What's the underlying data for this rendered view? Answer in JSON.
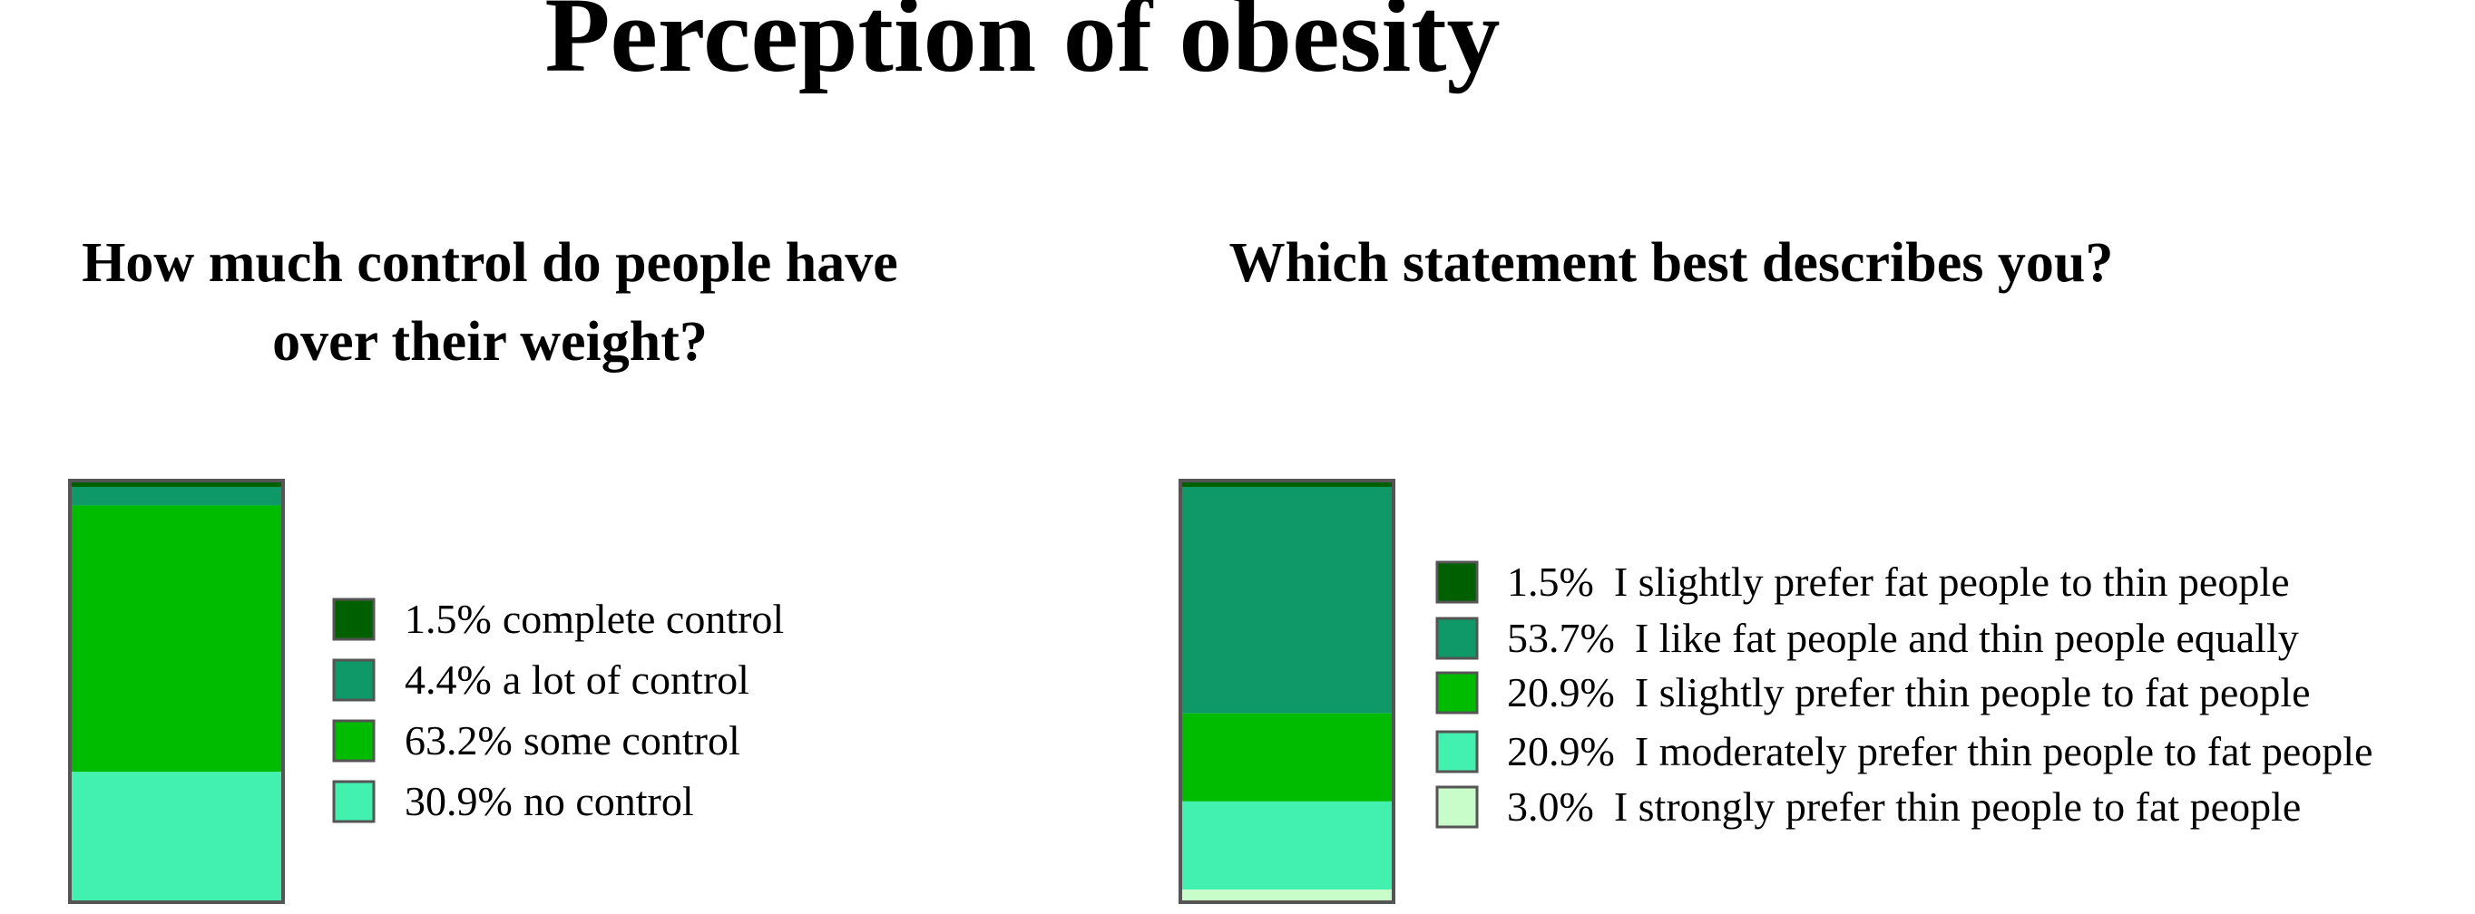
{
  "title": "Perception of obesity",
  "chart_data": [
    {
      "type": "bar",
      "stacked": true,
      "title_lines": [
        "How much control do people have",
        "over their weight?"
      ],
      "unit": "%",
      "ylim": [
        0,
        100
      ],
      "segments": [
        {
          "label": "complete control",
          "value": 1.5,
          "value_label": "1.5%",
          "color": "#006000"
        },
        {
          "label": "a lot of control",
          "value": 4.4,
          "value_label": "4.4%",
          "color": "#0f9868"
        },
        {
          "label": "some control",
          "value": 63.2,
          "value_label": "63.2%",
          "color": "#00bc00"
        },
        {
          "label": "no control",
          "value": 30.9,
          "value_label": "30.9%",
          "color": "#42f0b0"
        }
      ],
      "legend_position": "right"
    },
    {
      "type": "bar",
      "stacked": true,
      "title_lines": [
        "Which statement best describes you?"
      ],
      "unit": "%",
      "ylim": [
        0,
        100
      ],
      "segments": [
        {
          "label": "I slightly prefer fat people to thin people",
          "value": 1.5,
          "value_label": "1.5%",
          "color": "#006000"
        },
        {
          "label": "I like fat people and thin people equally",
          "value": 53.7,
          "value_label": "53.7%",
          "color": "#0f9868"
        },
        {
          "label": "I slightly prefer thin people to fat people",
          "value": 20.9,
          "value_label": "20.9%",
          "color": "#00bc00"
        },
        {
          "label": "I moderately prefer thin people to fat people",
          "value": 20.9,
          "value_label": "20.9%",
          "color": "#42f0b0"
        },
        {
          "label": "I strongly prefer thin people to fat people",
          "value": 3.0,
          "value_label": "3.0%",
          "color": "#c8fcc8"
        }
      ],
      "legend_position": "right"
    }
  ]
}
